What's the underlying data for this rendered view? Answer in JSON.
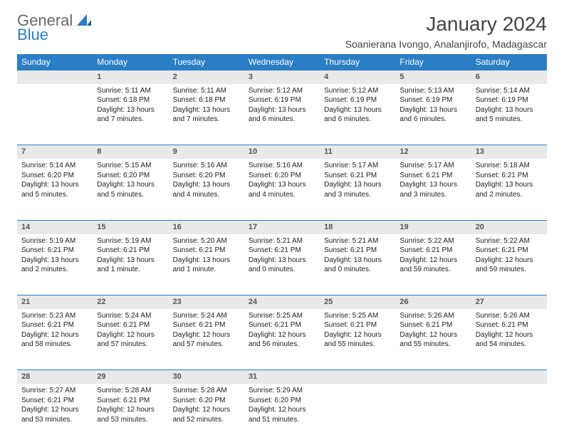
{
  "brand": {
    "word1": "General",
    "word2": "Blue"
  },
  "title": "January 2024",
  "location": "Soanierana Ivongo, Analanjirofo, Madagascar",
  "colors": {
    "header_bg": "#2a7ec5",
    "header_text": "#ffffff",
    "daynum_bg": "#e9e9e9",
    "daynum_border": "#2a7ec5",
    "text": "#222222",
    "title_text": "#444444",
    "logo_gray": "#6a6a6a",
    "logo_blue": "#2a7ec5",
    "page_bg": "#ffffff"
  },
  "fonts": {
    "title_pt": 28,
    "location_pt": 14,
    "weekday_pt": 12,
    "daynum_pt": 11,
    "body_pt": 10
  },
  "weekdays": [
    "Sunday",
    "Monday",
    "Tuesday",
    "Wednesday",
    "Thursday",
    "Friday",
    "Saturday"
  ],
  "weeks": [
    [
      null,
      {
        "n": "1",
        "sr": "Sunrise: 5:11 AM",
        "ss": "Sunset: 6:18 PM",
        "d1": "Daylight: 13 hours",
        "d2": "and 7 minutes."
      },
      {
        "n": "2",
        "sr": "Sunrise: 5:11 AM",
        "ss": "Sunset: 6:18 PM",
        "d1": "Daylight: 13 hours",
        "d2": "and 7 minutes."
      },
      {
        "n": "3",
        "sr": "Sunrise: 5:12 AM",
        "ss": "Sunset: 6:19 PM",
        "d1": "Daylight: 13 hours",
        "d2": "and 6 minutes."
      },
      {
        "n": "4",
        "sr": "Sunrise: 5:12 AM",
        "ss": "Sunset: 6:19 PM",
        "d1": "Daylight: 13 hours",
        "d2": "and 6 minutes."
      },
      {
        "n": "5",
        "sr": "Sunrise: 5:13 AM",
        "ss": "Sunset: 6:19 PM",
        "d1": "Daylight: 13 hours",
        "d2": "and 6 minutes."
      },
      {
        "n": "6",
        "sr": "Sunrise: 5:14 AM",
        "ss": "Sunset: 6:19 PM",
        "d1": "Daylight: 13 hours",
        "d2": "and 5 minutes."
      }
    ],
    [
      {
        "n": "7",
        "sr": "Sunrise: 5:14 AM",
        "ss": "Sunset: 6:20 PM",
        "d1": "Daylight: 13 hours",
        "d2": "and 5 minutes."
      },
      {
        "n": "8",
        "sr": "Sunrise: 5:15 AM",
        "ss": "Sunset: 6:20 PM",
        "d1": "Daylight: 13 hours",
        "d2": "and 5 minutes."
      },
      {
        "n": "9",
        "sr": "Sunrise: 5:16 AM",
        "ss": "Sunset: 6:20 PM",
        "d1": "Daylight: 13 hours",
        "d2": "and 4 minutes."
      },
      {
        "n": "10",
        "sr": "Sunrise: 5:16 AM",
        "ss": "Sunset: 6:20 PM",
        "d1": "Daylight: 13 hours",
        "d2": "and 4 minutes."
      },
      {
        "n": "11",
        "sr": "Sunrise: 5:17 AM",
        "ss": "Sunset: 6:21 PM",
        "d1": "Daylight: 13 hours",
        "d2": "and 3 minutes."
      },
      {
        "n": "12",
        "sr": "Sunrise: 5:17 AM",
        "ss": "Sunset: 6:21 PM",
        "d1": "Daylight: 13 hours",
        "d2": "and 3 minutes."
      },
      {
        "n": "13",
        "sr": "Sunrise: 5:18 AM",
        "ss": "Sunset: 6:21 PM",
        "d1": "Daylight: 13 hours",
        "d2": "and 2 minutes."
      }
    ],
    [
      {
        "n": "14",
        "sr": "Sunrise: 5:19 AM",
        "ss": "Sunset: 6:21 PM",
        "d1": "Daylight: 13 hours",
        "d2": "and 2 minutes."
      },
      {
        "n": "15",
        "sr": "Sunrise: 5:19 AM",
        "ss": "Sunset: 6:21 PM",
        "d1": "Daylight: 13 hours",
        "d2": "and 1 minute."
      },
      {
        "n": "16",
        "sr": "Sunrise: 5:20 AM",
        "ss": "Sunset: 6:21 PM",
        "d1": "Daylight: 13 hours",
        "d2": "and 1 minute."
      },
      {
        "n": "17",
        "sr": "Sunrise: 5:21 AM",
        "ss": "Sunset: 6:21 PM",
        "d1": "Daylight: 13 hours",
        "d2": "and 0 minutes."
      },
      {
        "n": "18",
        "sr": "Sunrise: 5:21 AM",
        "ss": "Sunset: 6:21 PM",
        "d1": "Daylight: 13 hours",
        "d2": "and 0 minutes."
      },
      {
        "n": "19",
        "sr": "Sunrise: 5:22 AM",
        "ss": "Sunset: 6:21 PM",
        "d1": "Daylight: 12 hours",
        "d2": "and 59 minutes."
      },
      {
        "n": "20",
        "sr": "Sunrise: 5:22 AM",
        "ss": "Sunset: 6:21 PM",
        "d1": "Daylight: 12 hours",
        "d2": "and 59 minutes."
      }
    ],
    [
      {
        "n": "21",
        "sr": "Sunrise: 5:23 AM",
        "ss": "Sunset: 6:21 PM",
        "d1": "Daylight: 12 hours",
        "d2": "and 58 minutes."
      },
      {
        "n": "22",
        "sr": "Sunrise: 5:24 AM",
        "ss": "Sunset: 6:21 PM",
        "d1": "Daylight: 12 hours",
        "d2": "and 57 minutes."
      },
      {
        "n": "23",
        "sr": "Sunrise: 5:24 AM",
        "ss": "Sunset: 6:21 PM",
        "d1": "Daylight: 12 hours",
        "d2": "and 57 minutes."
      },
      {
        "n": "24",
        "sr": "Sunrise: 5:25 AM",
        "ss": "Sunset: 6:21 PM",
        "d1": "Daylight: 12 hours",
        "d2": "and 56 minutes."
      },
      {
        "n": "25",
        "sr": "Sunrise: 5:25 AM",
        "ss": "Sunset: 6:21 PM",
        "d1": "Daylight: 12 hours",
        "d2": "and 55 minutes."
      },
      {
        "n": "26",
        "sr": "Sunrise: 5:26 AM",
        "ss": "Sunset: 6:21 PM",
        "d1": "Daylight: 12 hours",
        "d2": "and 55 minutes."
      },
      {
        "n": "27",
        "sr": "Sunrise: 5:26 AM",
        "ss": "Sunset: 6:21 PM",
        "d1": "Daylight: 12 hours",
        "d2": "and 54 minutes."
      }
    ],
    [
      {
        "n": "28",
        "sr": "Sunrise: 5:27 AM",
        "ss": "Sunset: 6:21 PM",
        "d1": "Daylight: 12 hours",
        "d2": "and 53 minutes."
      },
      {
        "n": "29",
        "sr": "Sunrise: 5:28 AM",
        "ss": "Sunset: 6:21 PM",
        "d1": "Daylight: 12 hours",
        "d2": "and 53 minutes."
      },
      {
        "n": "30",
        "sr": "Sunrise: 5:28 AM",
        "ss": "Sunset: 6:20 PM",
        "d1": "Daylight: 12 hours",
        "d2": "and 52 minutes."
      },
      {
        "n": "31",
        "sr": "Sunrise: 5:29 AM",
        "ss": "Sunset: 6:20 PM",
        "d1": "Daylight: 12 hours",
        "d2": "and 51 minutes."
      },
      null,
      null,
      null
    ]
  ]
}
